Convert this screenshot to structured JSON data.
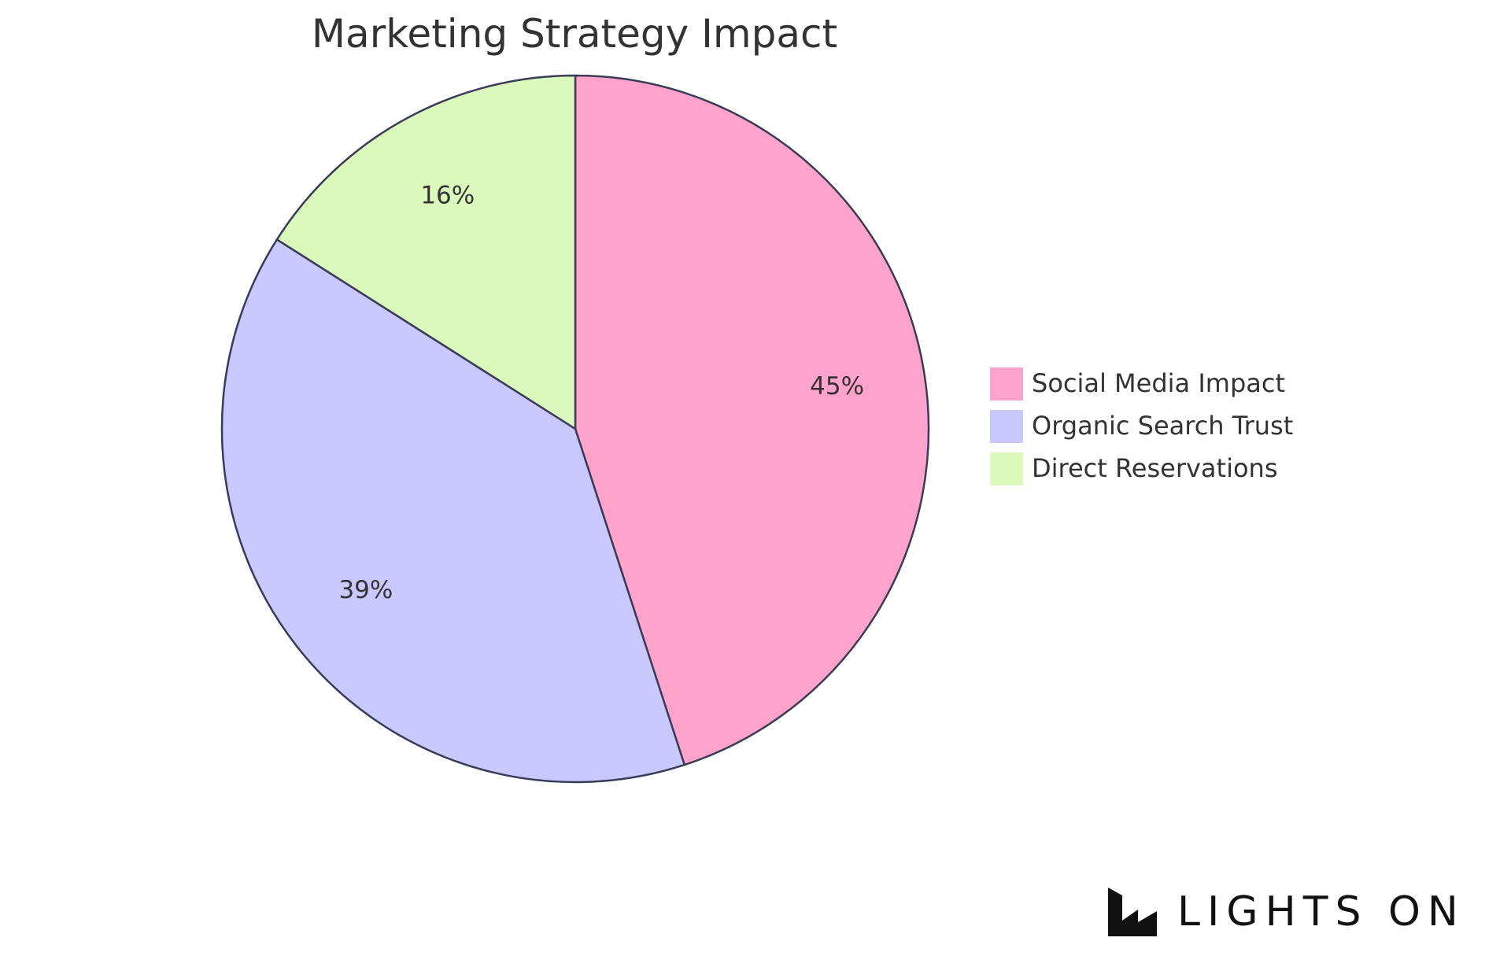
{
  "chart_data": {
    "type": "pie",
    "title": "Marketing Strategy Impact",
    "slices": [
      {
        "label": "Social Media Impact",
        "value": 45,
        "display": "45%",
        "color": "#ffa3cc"
      },
      {
        "label": "Organic Search Trust",
        "value": 39,
        "display": "39%",
        "color": "#c9c9ff"
      },
      {
        "label": "Direct Reservations",
        "value": 16,
        "display": "16%",
        "color": "#dbf9bd"
      }
    ],
    "stroke_color": "#393c56",
    "legend_position": "right"
  },
  "branding": {
    "logo_icon": "lights-on-logo-icon",
    "wordmark": "LIGHTS ON"
  }
}
